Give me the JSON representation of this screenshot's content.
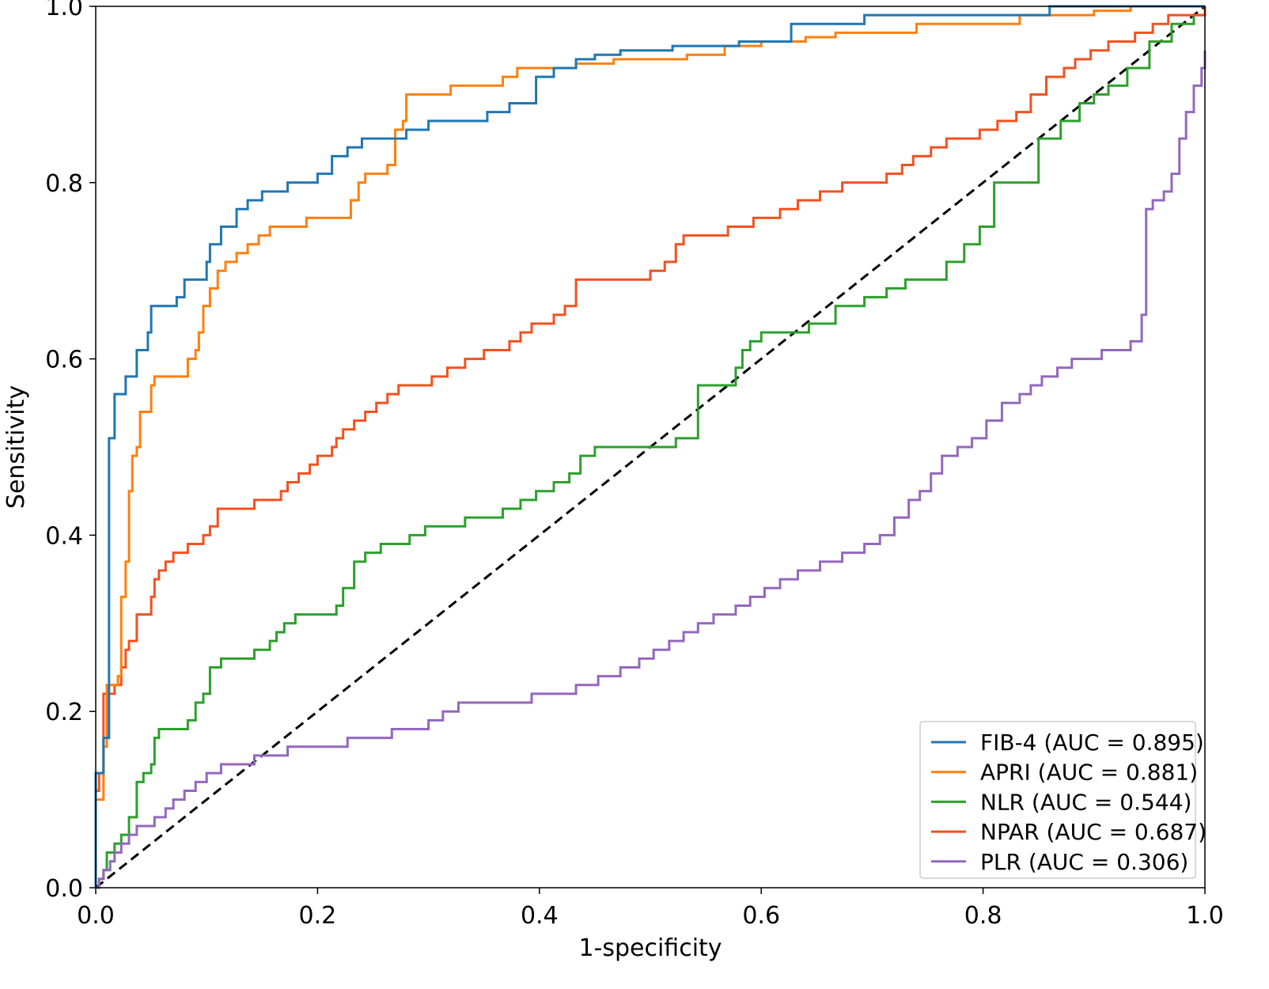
{
  "chart_data": {
    "type": "line",
    "title": "",
    "xlabel": "1-specificity",
    "ylabel": "Sensitivity",
    "xlim": [
      0.0,
      1.0
    ],
    "ylim": [
      0.0,
      1.0
    ],
    "xticks": [
      "0.0",
      "0.2",
      "0.4",
      "0.6",
      "0.8",
      "1.0"
    ],
    "yticks": [
      "0.0",
      "0.2",
      "0.4",
      "0.6",
      "0.8",
      "1.0"
    ],
    "grid": false,
    "legend_position": "bottom-right",
    "reference_line": {
      "name": "chance",
      "x": [
        0,
        1
      ],
      "y": [
        0,
        1
      ],
      "color": "#000000",
      "style": "dashed"
    },
    "series": [
      {
        "name": "FIB-4",
        "label": "FIB-4 (AUC = 0.895)",
        "auc": 0.895,
        "color": "#1f77b4",
        "x": [
          0,
          0,
          0.005,
          0.007,
          0.01,
          0.012,
          0.017,
          0.017,
          0.027,
          0.03,
          0.037,
          0.04,
          0.047,
          0.05,
          0.063,
          0.073,
          0.08,
          0.09,
          0.1,
          0.103,
          0.113,
          0.127,
          0.137,
          0.15,
          0.163,
          0.173,
          0.19,
          0.2,
          0.213,
          0.227,
          0.24,
          0.26,
          0.28,
          0.3,
          0.32,
          0.34,
          0.353,
          0.373,
          0.387,
          0.397,
          0.413,
          0.433,
          0.45,
          0.473,
          0.5,
          0.52,
          0.553,
          0.58,
          0.6,
          0.627,
          0.653,
          0.693,
          0.72,
          0.767,
          0.8,
          0.84,
          0.86,
          0.9,
          0.933,
          0.967,
          1.0
        ],
        "y": [
          0,
          0.13,
          0.13,
          0.17,
          0.17,
          0.51,
          0.56,
          0.56,
          0.58,
          0.58,
          0.61,
          0.61,
          0.63,
          0.66,
          0.66,
          0.67,
          0.69,
          0.69,
          0.71,
          0.73,
          0.75,
          0.77,
          0.78,
          0.79,
          0.79,
          0.8,
          0.8,
          0.81,
          0.83,
          0.84,
          0.85,
          0.85,
          0.86,
          0.87,
          0.87,
          0.87,
          0.88,
          0.89,
          0.89,
          0.92,
          0.93,
          0.94,
          0.945,
          0.95,
          0.95,
          0.955,
          0.955,
          0.96,
          0.96,
          0.98,
          0.98,
          0.99,
          0.99,
          0.99,
          0.99,
          0.99,
          1.0,
          1.0,
          1.0,
          1.0,
          1.0
        ]
      },
      {
        "name": "APRI",
        "label": "APRI (AUC = 0.881)",
        "auc": 0.881,
        "color": "#ff7f0e",
        "x": [
          0,
          0,
          0.003,
          0.007,
          0.01,
          0.013,
          0.02,
          0.023,
          0.027,
          0.03,
          0.033,
          0.037,
          0.04,
          0.043,
          0.05,
          0.053,
          0.057,
          0.063,
          0.077,
          0.083,
          0.09,
          0.093,
          0.097,
          0.103,
          0.11,
          0.117,
          0.127,
          0.137,
          0.147,
          0.157,
          0.17,
          0.19,
          0.21,
          0.223,
          0.23,
          0.237,
          0.243,
          0.253,
          0.263,
          0.27,
          0.277,
          0.28,
          0.3,
          0.32,
          0.353,
          0.367,
          0.38,
          0.4,
          0.433,
          0.467,
          0.5,
          0.533,
          0.567,
          0.6,
          0.64,
          0.667,
          0.7,
          0.74,
          0.793,
          0.833,
          0.867,
          0.9,
          0.933,
          0.967,
          1.0
        ],
        "y": [
          0,
          0.1,
          0.1,
          0.16,
          0.23,
          0.23,
          0.24,
          0.33,
          0.37,
          0.45,
          0.49,
          0.5,
          0.54,
          0.54,
          0.57,
          0.58,
          0.58,
          0.58,
          0.58,
          0.6,
          0.61,
          0.63,
          0.66,
          0.68,
          0.7,
          0.71,
          0.72,
          0.73,
          0.74,
          0.75,
          0.75,
          0.76,
          0.76,
          0.76,
          0.78,
          0.8,
          0.81,
          0.81,
          0.82,
          0.86,
          0.87,
          0.9,
          0.9,
          0.91,
          0.91,
          0.92,
          0.93,
          0.93,
          0.935,
          0.94,
          0.94,
          0.945,
          0.955,
          0.96,
          0.965,
          0.97,
          0.97,
          0.98,
          0.98,
          0.99,
          0.99,
          0.995,
          1.0,
          1.0,
          1.0
        ]
      },
      {
        "name": "NLR",
        "label": "NLR (AUC = 0.544)",
        "auc": 0.544,
        "color": "#2ca02c",
        "x": [
          0,
          0.003,
          0.007,
          0.01,
          0.017,
          0.023,
          0.027,
          0.03,
          0.037,
          0.043,
          0.05,
          0.053,
          0.057,
          0.07,
          0.083,
          0.09,
          0.097,
          0.103,
          0.107,
          0.113,
          0.13,
          0.143,
          0.157,
          0.163,
          0.17,
          0.18,
          0.193,
          0.207,
          0.217,
          0.223,
          0.233,
          0.243,
          0.257,
          0.273,
          0.283,
          0.297,
          0.313,
          0.333,
          0.35,
          0.367,
          0.383,
          0.397,
          0.413,
          0.427,
          0.437,
          0.45,
          0.467,
          0.487,
          0.507,
          0.523,
          0.543,
          0.57,
          0.577,
          0.583,
          0.59,
          0.6,
          0.623,
          0.643,
          0.667,
          0.693,
          0.713,
          0.73,
          0.743,
          0.767,
          0.783,
          0.797,
          0.81,
          0.827,
          0.85,
          0.87,
          0.887,
          0.9,
          0.913,
          0.93,
          0.95,
          0.97,
          0.99,
          1.0
        ],
        "y": [
          0,
          0.01,
          0.02,
          0.04,
          0.05,
          0.06,
          0.06,
          0.08,
          0.12,
          0.13,
          0.14,
          0.17,
          0.18,
          0.18,
          0.19,
          0.21,
          0.22,
          0.25,
          0.25,
          0.26,
          0.26,
          0.27,
          0.28,
          0.29,
          0.3,
          0.31,
          0.31,
          0.31,
          0.32,
          0.34,
          0.37,
          0.38,
          0.39,
          0.39,
          0.4,
          0.41,
          0.41,
          0.42,
          0.42,
          0.43,
          0.44,
          0.45,
          0.46,
          0.47,
          0.49,
          0.5,
          0.5,
          0.5,
          0.5,
          0.51,
          0.57,
          0.57,
          0.59,
          0.61,
          0.62,
          0.63,
          0.63,
          0.64,
          0.66,
          0.67,
          0.68,
          0.69,
          0.69,
          0.71,
          0.73,
          0.75,
          0.8,
          0.8,
          0.85,
          0.87,
          0.89,
          0.9,
          0.91,
          0.93,
          0.96,
          0.98,
          0.99,
          1.0
        ]
      },
      {
        "name": "NPAR",
        "label": "NPAR (AUC = 0.687)",
        "auc": 0.687,
        "color": "#f4511e",
        "x": [
          0,
          0,
          0.003,
          0.007,
          0.017,
          0.023,
          0.027,
          0.03,
          0.037,
          0.047,
          0.05,
          0.053,
          0.057,
          0.063,
          0.07,
          0.083,
          0.093,
          0.097,
          0.103,
          0.11,
          0.127,
          0.143,
          0.157,
          0.167,
          0.173,
          0.183,
          0.193,
          0.2,
          0.213,
          0.217,
          0.223,
          0.233,
          0.243,
          0.253,
          0.263,
          0.273,
          0.293,
          0.303,
          0.317,
          0.333,
          0.35,
          0.363,
          0.373,
          0.383,
          0.393,
          0.403,
          0.413,
          0.423,
          0.433,
          0.453,
          0.473,
          0.5,
          0.513,
          0.523,
          0.53,
          0.553,
          0.57,
          0.583,
          0.593,
          0.603,
          0.617,
          0.633,
          0.653,
          0.673,
          0.693,
          0.713,
          0.727,
          0.737,
          0.753,
          0.767,
          0.787,
          0.797,
          0.813,
          0.83,
          0.843,
          0.857,
          0.873,
          0.883,
          0.897,
          0.913,
          0.937,
          0.953,
          0.967,
          0.98,
          1.0
        ],
        "y": [
          0,
          0.11,
          0.13,
          0.22,
          0.23,
          0.25,
          0.27,
          0.28,
          0.31,
          0.31,
          0.33,
          0.35,
          0.36,
          0.37,
          0.38,
          0.39,
          0.39,
          0.4,
          0.41,
          0.43,
          0.43,
          0.44,
          0.44,
          0.45,
          0.46,
          0.47,
          0.48,
          0.49,
          0.5,
          0.51,
          0.52,
          0.53,
          0.54,
          0.55,
          0.56,
          0.57,
          0.57,
          0.58,
          0.59,
          0.6,
          0.61,
          0.61,
          0.62,
          0.63,
          0.64,
          0.64,
          0.65,
          0.66,
          0.69,
          0.69,
          0.69,
          0.7,
          0.71,
          0.73,
          0.74,
          0.74,
          0.75,
          0.75,
          0.76,
          0.76,
          0.77,
          0.78,
          0.79,
          0.8,
          0.8,
          0.81,
          0.82,
          0.83,
          0.84,
          0.85,
          0.85,
          0.86,
          0.87,
          0.88,
          0.9,
          0.92,
          0.93,
          0.94,
          0.95,
          0.96,
          0.97,
          0.98,
          0.99,
          0.99,
          1.0
        ]
      },
      {
        "name": "PLR",
        "label": "PLR (AUC = 0.306)",
        "auc": 0.306,
        "color": "#9467bd",
        "x": [
          0,
          0.003,
          0.007,
          0.013,
          0.017,
          0.023,
          0.03,
          0.037,
          0.043,
          0.053,
          0.063,
          0.07,
          0.08,
          0.09,
          0.1,
          0.113,
          0.127,
          0.143,
          0.157,
          0.173,
          0.193,
          0.213,
          0.227,
          0.247,
          0.267,
          0.287,
          0.3,
          0.313,
          0.327,
          0.337,
          0.347,
          0.357,
          0.373,
          0.393,
          0.413,
          0.433,
          0.453,
          0.473,
          0.49,
          0.503,
          0.517,
          0.53,
          0.543,
          0.557,
          0.577,
          0.59,
          0.603,
          0.617,
          0.633,
          0.653,
          0.673,
          0.693,
          0.707,
          0.72,
          0.733,
          0.743,
          0.753,
          0.763,
          0.777,
          0.79,
          0.803,
          0.817,
          0.833,
          0.843,
          0.853,
          0.867,
          0.88,
          0.893,
          0.907,
          0.92,
          0.933,
          0.943,
          0.947,
          0.953,
          0.963,
          0.97,
          0.977,
          0.983,
          0.99,
          0.997,
          1.0
        ],
        "y": [
          0,
          0.01,
          0.02,
          0.03,
          0.04,
          0.05,
          0.06,
          0.07,
          0.07,
          0.08,
          0.09,
          0.1,
          0.11,
          0.12,
          0.13,
          0.14,
          0.14,
          0.15,
          0.15,
          0.16,
          0.16,
          0.16,
          0.17,
          0.17,
          0.18,
          0.18,
          0.19,
          0.2,
          0.21,
          0.21,
          0.21,
          0.21,
          0.21,
          0.22,
          0.22,
          0.23,
          0.24,
          0.25,
          0.26,
          0.27,
          0.28,
          0.29,
          0.3,
          0.31,
          0.32,
          0.33,
          0.34,
          0.35,
          0.36,
          0.37,
          0.38,
          0.39,
          0.4,
          0.42,
          0.44,
          0.45,
          0.47,
          0.49,
          0.5,
          0.51,
          0.53,
          0.55,
          0.56,
          0.57,
          0.58,
          0.59,
          0.6,
          0.6,
          0.61,
          0.61,
          0.62,
          0.65,
          0.77,
          0.78,
          0.79,
          0.81,
          0.85,
          0.88,
          0.91,
          0.93,
          0.95
        ]
      }
    ]
  }
}
